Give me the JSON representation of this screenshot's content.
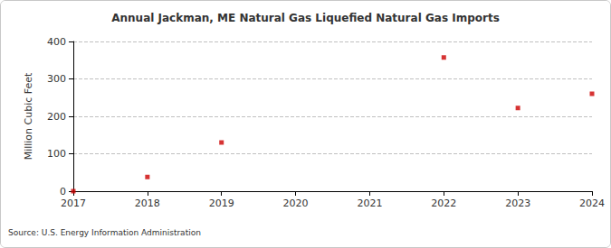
{
  "chart_data": {
    "type": "scatter",
    "title": "Annual Jackman, ME Natural Gas Liquefied Natural Gas Imports",
    "y_label": "Million Cubic Feet",
    "source": "Source: U.S. Energy Information Administration",
    "x": [
      2017,
      2018,
      2019,
      2022,
      2023,
      2024
    ],
    "values": [
      0,
      38,
      130,
      357,
      222,
      260
    ],
    "color": "#cc0000",
    "marker": "square",
    "xlim": [
      2017,
      2024
    ],
    "xticks": [
      2017,
      2018,
      2019,
      2020,
      2021,
      2022,
      2023,
      2024
    ],
    "ylim": [
      0,
      400
    ],
    "yticks": [
      0,
      100,
      200,
      300,
      400
    ],
    "grid": true
  }
}
